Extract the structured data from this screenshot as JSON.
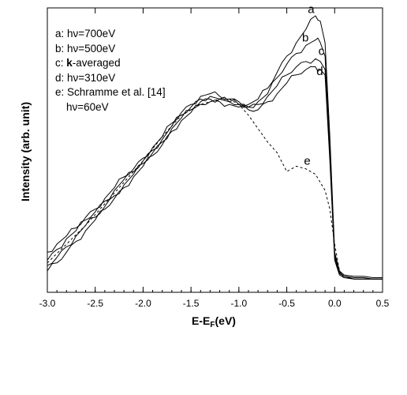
{
  "chart_data": {
    "type": "line",
    "title": "",
    "xlabel": {
      "main": "E-E",
      "sub": "F",
      "tail": "(eV)"
    },
    "ylabel": "Intensity (arb. unit)",
    "xlim": [
      -3.0,
      0.5
    ],
    "ylim": [
      0,
      1
    ],
    "x_ticks": [
      "-3.0",
      "-2.5",
      "-2.0",
      "-1.5",
      "-1.0",
      "-0.5",
      "0.0",
      "0.5"
    ],
    "grid": false,
    "legend_position": "top-left",
    "legend": [
      {
        "key": "a",
        "prefix": "a: ",
        "bold": "",
        "text": "hν=700eV"
      },
      {
        "key": "b",
        "prefix": "b: ",
        "bold": "",
        "text": "hν=500eV"
      },
      {
        "key": "c",
        "prefix": "c: ",
        "bold": "k",
        "text": "-averaged"
      },
      {
        "key": "d",
        "prefix": "d: ",
        "bold": "",
        "text": "hν=310eV"
      },
      {
        "key": "e",
        "prefix": "e: ",
        "bold": "",
        "text": "Schramme et al. [14]"
      }
    ],
    "legend_extra": "hν=60eV",
    "series": [
      {
        "name": "a",
        "style": "solid",
        "x": [
          -3.0,
          -2.9,
          -2.8,
          -2.7,
          -2.6,
          -2.5,
          -2.4,
          -2.3,
          -2.2,
          -2.1,
          -2.0,
          -1.9,
          -1.8,
          -1.7,
          -1.6,
          -1.5,
          -1.4,
          -1.3,
          -1.2,
          -1.1,
          -1.0,
          -0.9,
          -0.8,
          -0.7,
          -0.6,
          -0.5,
          -0.4,
          -0.3,
          -0.2,
          -0.15,
          -0.1,
          -0.05,
          0.0,
          0.05,
          0.1,
          0.2,
          0.3,
          0.4,
          0.5
        ],
        "y": [
          0.12,
          0.15,
          0.18,
          0.21,
          0.25,
          0.28,
          0.32,
          0.36,
          0.4,
          0.43,
          0.47,
          0.51,
          0.55,
          0.6,
          0.64,
          0.67,
          0.7,
          0.71,
          0.7,
          0.69,
          0.68,
          0.67,
          0.69,
          0.73,
          0.79,
          0.85,
          0.9,
          0.95,
          1.0,
          0.98,
          0.9,
          0.55,
          0.12,
          0.05,
          0.035,
          0.03,
          0.03,
          0.025,
          0.025
        ]
      },
      {
        "name": "b",
        "style": "solid",
        "x": [
          -3.0,
          -2.9,
          -2.8,
          -2.7,
          -2.6,
          -2.5,
          -2.4,
          -2.3,
          -2.2,
          -2.1,
          -2.0,
          -1.9,
          -1.8,
          -1.7,
          -1.6,
          -1.5,
          -1.4,
          -1.3,
          -1.2,
          -1.1,
          -1.0,
          -0.9,
          -0.8,
          -0.7,
          -0.6,
          -0.5,
          -0.4,
          -0.3,
          -0.2,
          -0.15,
          -0.1,
          -0.05,
          0.0,
          0.05,
          0.1,
          0.2,
          0.3,
          0.4,
          0.5
        ],
        "y": [
          0.09,
          0.13,
          0.17,
          0.2,
          0.24,
          0.27,
          0.31,
          0.35,
          0.39,
          0.42,
          0.46,
          0.5,
          0.54,
          0.59,
          0.63,
          0.66,
          0.69,
          0.7,
          0.69,
          0.68,
          0.67,
          0.66,
          0.68,
          0.71,
          0.77,
          0.82,
          0.86,
          0.89,
          0.91,
          0.9,
          0.85,
          0.5,
          0.11,
          0.045,
          0.03,
          0.025,
          0.025,
          0.02,
          0.02
        ]
      },
      {
        "name": "c",
        "style": "solid",
        "x": [
          -3.0,
          -2.9,
          -2.8,
          -2.7,
          -2.6,
          -2.5,
          -2.4,
          -2.3,
          -2.2,
          -2.1,
          -2.0,
          -1.9,
          -1.8,
          -1.7,
          -1.6,
          -1.5,
          -1.4,
          -1.3,
          -1.2,
          -1.1,
          -1.0,
          -0.9,
          -0.8,
          -0.7,
          -0.6,
          -0.5,
          -0.4,
          -0.3,
          -0.2,
          -0.15,
          -0.1,
          -0.05,
          0.0,
          0.05,
          0.1,
          0.2,
          0.3,
          0.4,
          0.5
        ],
        "y": [
          0.07,
          0.1,
          0.14,
          0.18,
          0.22,
          0.25,
          0.29,
          0.33,
          0.37,
          0.41,
          0.45,
          0.49,
          0.53,
          0.58,
          0.62,
          0.65,
          0.68,
          0.69,
          0.69,
          0.68,
          0.67,
          0.66,
          0.67,
          0.7,
          0.74,
          0.78,
          0.81,
          0.83,
          0.84,
          0.83,
          0.8,
          0.48,
          0.1,
          0.04,
          0.03,
          0.02,
          0.02,
          0.02,
          0.02
        ]
      },
      {
        "name": "d",
        "style": "solid",
        "x": [
          -3.0,
          -2.9,
          -2.8,
          -2.7,
          -2.6,
          -2.5,
          -2.4,
          -2.3,
          -2.2,
          -2.1,
          -2.0,
          -1.9,
          -1.8,
          -1.7,
          -1.6,
          -1.5,
          -1.4,
          -1.3,
          -1.2,
          -1.1,
          -1.0,
          -0.9,
          -0.8,
          -0.7,
          -0.6,
          -0.5,
          -0.4,
          -0.3,
          -0.2,
          -0.15,
          -0.1,
          -0.05,
          0.0,
          0.05,
          0.1,
          0.2,
          0.3,
          0.4,
          0.5
        ],
        "y": [
          0.05,
          0.08,
          0.12,
          0.16,
          0.2,
          0.24,
          0.28,
          0.32,
          0.36,
          0.4,
          0.44,
          0.48,
          0.52,
          0.57,
          0.61,
          0.64,
          0.67,
          0.68,
          0.68,
          0.67,
          0.66,
          0.65,
          0.65,
          0.68,
          0.71,
          0.75,
          0.78,
          0.8,
          0.81,
          0.8,
          0.78,
          0.46,
          0.09,
          0.035,
          0.025,
          0.02,
          0.02,
          0.02,
          0.02
        ]
      },
      {
        "name": "e",
        "style": "dashed",
        "x": [
          -3.0,
          -2.8,
          -2.6,
          -2.4,
          -2.2,
          -2.0,
          -1.8,
          -1.6,
          -1.4,
          -1.2,
          -1.1,
          -1.0,
          -0.9,
          -0.8,
          -0.7,
          -0.6,
          -0.5,
          -0.4,
          -0.3,
          -0.2,
          -0.1,
          -0.05,
          0.0,
          0.05,
          0.1
        ],
        "y": [
          0.08,
          0.15,
          0.22,
          0.3,
          0.38,
          0.46,
          0.55,
          0.63,
          0.67,
          0.69,
          0.69,
          0.67,
          0.63,
          0.58,
          0.53,
          0.49,
          0.42,
          0.44,
          0.43,
          0.41,
          0.35,
          0.28,
          0.15,
          0.05,
          0.02
        ]
      }
    ],
    "annotations": [
      {
        "label": "a",
        "x": -0.28,
        "y": 1.01
      },
      {
        "label": "b",
        "x": -0.34,
        "y": 0.905
      },
      {
        "label": "c",
        "x": -0.17,
        "y": 0.855
      },
      {
        "label": "d",
        "x": -0.19,
        "y": 0.78
      },
      {
        "label": "e",
        "x": -0.32,
        "y": 0.445
      }
    ]
  }
}
